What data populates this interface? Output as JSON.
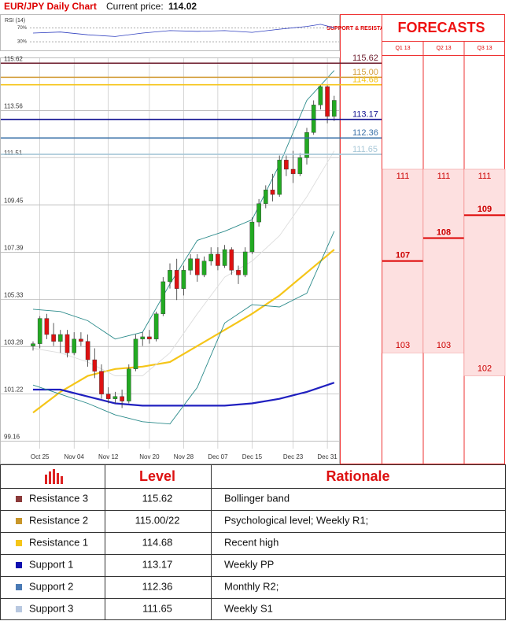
{
  "header": {
    "title": "EUR/JPY Daily Chart",
    "price_label": "Current price:",
    "price": 114.02
  },
  "chart_data": {
    "type": "candlestick",
    "categories": [
      null,
      "Oct 25",
      null,
      null,
      null,
      null,
      "Nov 04",
      null,
      null,
      null,
      null,
      "Nov 12",
      null,
      null,
      null,
      null,
      null,
      "Nov 20",
      null,
      null,
      null,
      null,
      "Nov 28",
      null,
      null,
      null,
      null,
      "Dec 07",
      null,
      null,
      null,
      null,
      "Dec 15",
      null,
      null,
      null,
      null,
      null,
      "Dec 23",
      null,
      null,
      null,
      null,
      "Dec 31",
      null
    ],
    "open": [
      103.3,
      103.4,
      104.5,
      103.8,
      103.5,
      103.8,
      103.0,
      103.6,
      103.5,
      102.7,
      102.2,
      101.2,
      101.0,
      101.1,
      100.9,
      102.3,
      103.6,
      103.7,
      103.6,
      104.7,
      106.1,
      106.6,
      105.8,
      106.6,
      107.1,
      106.4,
      107.0,
      107.3,
      106.8,
      107.5,
      106.6,
      106.4,
      107.4,
      108.7,
      109.5,
      110.1,
      109.9,
      111.4,
      111.0,
      110.8,
      111.5,
      112.6,
      113.8,
      114.6,
      113.3
    ],
    "high": [
      103.5,
      104.6,
      104.7,
      104.3,
      104.0,
      104.0,
      103.9,
      103.9,
      103.8,
      103.2,
      102.5,
      101.5,
      101.3,
      101.4,
      102.5,
      103.8,
      103.9,
      104.0,
      104.8,
      106.3,
      106.9,
      107.1,
      106.8,
      107.3,
      107.3,
      107.2,
      107.6,
      107.6,
      107.7,
      107.6,
      106.8,
      107.6,
      108.9,
      109.7,
      110.3,
      110.8,
      111.6,
      111.6,
      111.8,
      111.7,
      112.8,
      114.0,
      114.7,
      114.7,
      114.2
    ],
    "low": [
      103.1,
      103.2,
      103.6,
      103.3,
      103.0,
      102.8,
      102.9,
      103.3,
      102.4,
      101.9,
      101.0,
      100.8,
      100.8,
      100.6,
      100.8,
      102.2,
      103.3,
      103.4,
      103.5,
      104.6,
      105.8,
      105.3,
      105.5,
      106.4,
      106.1,
      106.3,
      106.8,
      106.6,
      106.7,
      106.4,
      106.0,
      106.3,
      107.3,
      108.5,
      109.3,
      109.6,
      109.8,
      110.7,
      110.4,
      110.7,
      111.2,
      112.5,
      113.6,
      113.0,
      113.1
    ],
    "close": [
      103.4,
      104.5,
      103.8,
      103.5,
      103.8,
      103.0,
      103.6,
      103.5,
      102.7,
      102.2,
      101.2,
      101.0,
      101.1,
      100.9,
      102.3,
      103.6,
      103.7,
      103.6,
      104.7,
      106.1,
      106.6,
      105.8,
      106.6,
      107.1,
      106.4,
      107.0,
      107.3,
      106.8,
      107.5,
      106.6,
      106.4,
      107.4,
      108.7,
      109.5,
      110.1,
      109.9,
      111.4,
      111.0,
      110.8,
      111.5,
      112.6,
      113.8,
      114.6,
      113.3,
      114.0
    ],
    "up_color": "#22aa22",
    "down_color": "#dd1111",
    "series": [
      {
        "color": "#f5c518",
        "x": [
          0,
          4,
          8,
          12,
          16,
          20,
          24,
          28,
          32,
          36,
          40,
          44
        ],
        "values": [
          100.4,
          101.3,
          102.0,
          102.3,
          102.4,
          102.6,
          103.3,
          104.0,
          104.7,
          105.5,
          106.5,
          107.5
        ]
      },
      {
        "color": "#2020c0",
        "x": [
          0,
          4,
          8,
          12,
          16,
          20,
          24,
          28,
          32,
          36,
          40,
          44
        ],
        "values": [
          101.4,
          101.4,
          101.1,
          100.8,
          100.7,
          100.7,
          100.7,
          100.7,
          100.8,
          101.0,
          101.3,
          101.7
        ]
      },
      {
        "color": "#2a8a8a",
        "x": [
          0,
          4,
          8,
          12,
          16,
          20,
          24,
          28,
          32,
          36,
          40,
          44
        ],
        "values": [
          104.9,
          104.8,
          104.4,
          103.6,
          103.9,
          106.0,
          107.9,
          108.3,
          108.8,
          111.2,
          114.0,
          115.3
        ]
      },
      {
        "color": "#2a8a8a",
        "x": [
          0,
          4,
          8,
          12,
          16,
          20,
          24,
          28,
          32,
          36,
          40,
          44
        ],
        "values": [
          101.6,
          101.2,
          100.8,
          100.3,
          100.0,
          99.9,
          101.5,
          104.3,
          105.1,
          105.0,
          105.6,
          108.3
        ]
      },
      {
        "color": "#dddddd",
        "x": [
          0,
          4,
          8,
          12,
          16,
          20,
          24,
          28,
          32,
          36,
          40,
          44
        ],
        "values": [
          103.2,
          103.0,
          102.6,
          102.0,
          102.0,
          103.0,
          104.7,
          106.3,
          107.0,
          108.1,
          109.8,
          111.8
        ]
      }
    ],
    "ylim": [
      99.0,
      115.8
    ],
    "yticks": [
      115.62,
      113.56,
      111.51,
      109.45,
      107.39,
      105.33,
      103.28,
      101.22,
      99.16
    ],
    "grid": true,
    "levels": {
      "values": [
        115.62,
        115,
        114.68,
        113.17,
        112.36,
        111.65
      ],
      "value_labels": [
        "115.62",
        "115.00",
        "114.68",
        "113.17",
        "112.36",
        "111.65"
      ],
      "colors": [
        "#6b1a2a",
        "#d4a040",
        "#f5c518",
        "#101090",
        "#3a70a8",
        "#a8c8d8"
      ]
    },
    "rsi": {
      "label": "RSI (14)",
      "ylim": [
        10,
        100
      ],
      "yticks": [
        {
          "value": 70,
          "label": "70%"
        },
        {
          "value": 30,
          "label": "30%"
        }
      ],
      "color": "#3040c0",
      "x": [
        0,
        4,
        8,
        12,
        16,
        20,
        24,
        28,
        32,
        36,
        38,
        40,
        42,
        44
      ],
      "values": [
        55,
        58,
        50,
        45,
        55,
        62,
        60,
        62,
        57,
        66,
        70,
        74,
        80,
        70
      ]
    }
  },
  "forecasts": {
    "title": "FORECASTS",
    "sr_label": "SUPPORT & RESISTANCE",
    "columns": [
      {
        "label": "Q1 13",
        "high": 111,
        "mid": 107,
        "low": 103
      },
      {
        "label": "Q2 13",
        "high": 111,
        "mid": 108,
        "low": 103
      },
      {
        "label": "Q3 13",
        "high": 111,
        "mid": 109,
        "low": 102
      }
    ]
  },
  "table": {
    "header": [
      "Level",
      "Rationale"
    ],
    "rows": [
      {
        "name": "Resistance 3",
        "level": "115.62",
        "rationale": "Bollinger band",
        "color": "#8b3a3a"
      },
      {
        "name": "Resistance 2",
        "level": "115.00/22",
        "rationale": "Psychological level; Weekly R1;",
        "color": "#c8962a"
      },
      {
        "name": "Resistance 1",
        "level": "114.68",
        "rationale": "Recent high",
        "color": "#f5c518"
      },
      {
        "name": "Support 1",
        "level": "113.17",
        "rationale": "Weekly PP",
        "color": "#1010b0"
      },
      {
        "name": "Support 2",
        "level": "112.36",
        "rationale": "Monthly R2;",
        "color": "#4a7ab5"
      },
      {
        "name": "Support 3",
        "level": "111.65",
        "rationale": "Weekly S1",
        "color": "#b8c8e0"
      }
    ]
  }
}
